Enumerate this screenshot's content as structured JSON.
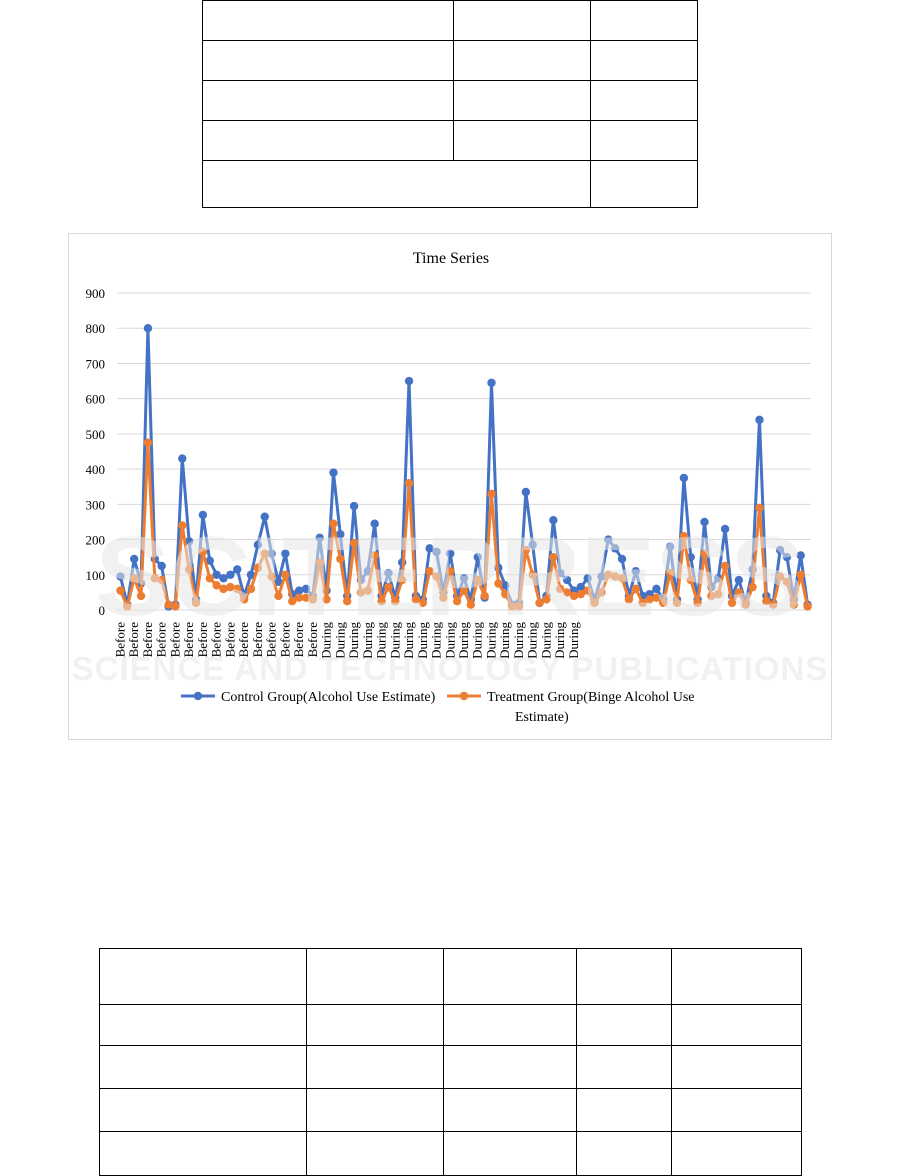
{
  "top_table": {
    "rows": [
      [
        "",
        "",
        ""
      ],
      [
        "",
        "",
        ""
      ],
      [
        "",
        "",
        ""
      ],
      [
        "",
        "",
        ""
      ],
      [
        "",
        ""
      ]
    ]
  },
  "bottom_table": {
    "rows": [
      [
        "",
        "",
        "",
        "",
        ""
      ],
      [
        "",
        "",
        "",
        "",
        ""
      ],
      [
        "",
        "",
        "",
        "",
        ""
      ],
      [
        "",
        "",
        "",
        "",
        ""
      ],
      [
        "",
        "",
        "",
        "",
        ""
      ]
    ]
  },
  "watermark": {
    "main": "SCITEPRESS",
    "sub": "SCIENCE AND TECHNOLOGY PUBLICATIONS",
    "color": "#e6e6e6"
  },
  "chart_data": {
    "type": "line",
    "title": "Time Series",
    "xlabel": "",
    "ylabel": "",
    "ylim": [
      0,
      900
    ],
    "yticks": [
      0,
      100,
      200,
      300,
      400,
      500,
      600,
      700,
      800,
      900
    ],
    "grid": true,
    "legend_position": "bottom",
    "x_tick_labels": [
      "Before",
      "Before",
      "Before",
      "Before",
      "Before",
      "Before",
      "Before",
      "Before",
      "Before",
      "Before",
      "Before",
      "Before",
      "Before",
      "Before",
      "Before",
      "During",
      "During",
      "During",
      "During",
      "During",
      "During",
      "During",
      "During",
      "During",
      "During",
      "During",
      "During",
      "During",
      "During",
      "During",
      "During",
      "During",
      "During",
      "During"
    ],
    "x_tick_label_step": 2,
    "series": [
      {
        "name": "Control Group(Alcohol Use Estimate)",
        "color": "#4472c4",
        "values": [
          95,
          15,
          145,
          75,
          800,
          145,
          125,
          10,
          15,
          430,
          195,
          30,
          270,
          140,
          100,
          90,
          100,
          115,
          40,
          100,
          185,
          265,
          160,
          80,
          160,
          45,
          55,
          60,
          40,
          205,
          55,
          390,
          215,
          40,
          295,
          85,
          110,
          245,
          40,
          105,
          35,
          135,
          650,
          40,
          30,
          175,
          165,
          50,
          160,
          40,
          90,
          30,
          150,
          35,
          645,
          120,
          70,
          15,
          20,
          335,
          185,
          20,
          40,
          255,
          105,
          85,
          55,
          65,
          90,
          30,
          95,
          200,
          175,
          145,
          40,
          110,
          40,
          45,
          60,
          30,
          180,
          30,
          375,
          150,
          30,
          250,
          65,
          90,
          230,
          40,
          85,
          20,
          115,
          540,
          40,
          20,
          170,
          150,
          30,
          155,
          15
        ],
        "start": "Before"
      },
      {
        "name": "Treatment Group(Binge Alcohol Use Estimate)",
        "color": "#ed7d31",
        "values": [
          55,
          10,
          90,
          40,
          475,
          90,
          85,
          15,
          10,
          240,
          115,
          20,
          165,
          90,
          70,
          60,
          65,
          60,
          30,
          60,
          120,
          160,
          95,
          40,
          100,
          25,
          35,
          35,
          30,
          135,
          30,
          245,
          145,
          25,
          190,
          50,
          55,
          155,
          25,
          65,
          25,
          85,
          360,
          30,
          20,
          110,
          95,
          35,
          110,
          25,
          55,
          15,
          85,
          40,
          330,
          75,
          45,
          10,
          10,
          170,
          100,
          20,
          30,
          150,
          60,
          50,
          40,
          45,
          55,
          20,
          50,
          100,
          95,
          90,
          30,
          60,
          20,
          30,
          35,
          20,
          105,
          20,
          210,
          85,
          20,
          160,
          40,
          45,
          125,
          20,
          50,
          15,
          65,
          290,
          25,
          15,
          95,
          80,
          15,
          100,
          10
        ]
      }
    ]
  }
}
